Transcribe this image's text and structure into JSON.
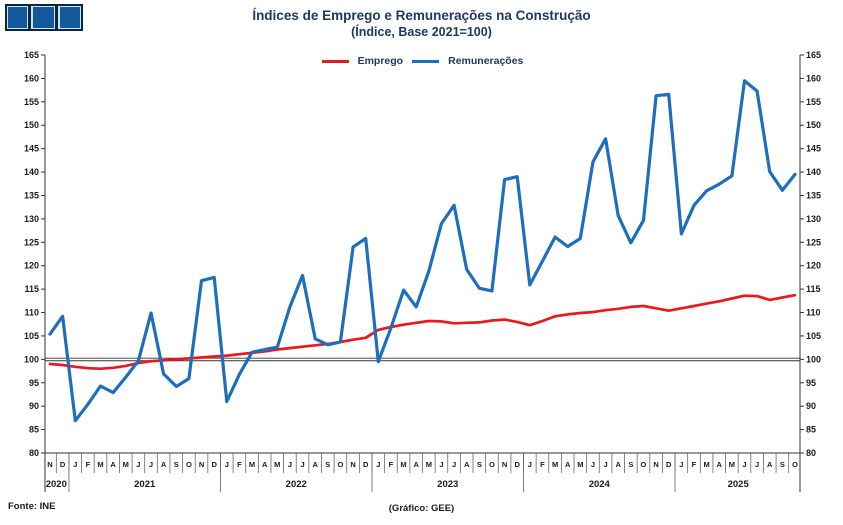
{
  "title": "Índices de Emprego e Remunerações na Construção",
  "subtitle": "(Índice, Base 2021=100)",
  "footer": {
    "source": "Fonte: INE",
    "credit": "(Gráfico: GEE)"
  },
  "colors": {
    "title": "#1f3864",
    "emprego": "#e8191d",
    "remuneracoes": "#1d6fbd",
    "axis_text": "#1a1a1a",
    "logo_blue": "#15599d"
  },
  "chart_data": {
    "type": "line",
    "title": "Índices de Emprego e Remunerações na Construção",
    "subtitle": "(Índice, Base 2021=100)",
    "legend_position": "top-center",
    "grid": false,
    "baseline": 100,
    "ylim": [
      80,
      165
    ],
    "ytick_step": 5,
    "y_axes": "identical left and right axes, ticks every 5 from 80 to 165",
    "x_tick_letters": [
      "N",
      "D",
      "J",
      "F",
      "M",
      "A",
      "M",
      "J",
      "J",
      "A",
      "S",
      "O",
      "N",
      "D",
      "J",
      "F",
      "M",
      "A",
      "M",
      "J",
      "J",
      "A",
      "S",
      "O",
      "N",
      "D",
      "J",
      "F",
      "M",
      "A",
      "M",
      "J",
      "J",
      "A",
      "S",
      "O",
      "N",
      "D",
      "J",
      "F",
      "M",
      "A",
      "M",
      "J",
      "J",
      "A",
      "S",
      "O",
      "N",
      "D",
      "J",
      "F",
      "M",
      "A",
      "M",
      "J",
      "J",
      "A",
      "S",
      "O"
    ],
    "year_groups": [
      {
        "label": "2020",
        "months": 2
      },
      {
        "label": "2021",
        "months": 12
      },
      {
        "label": "2022",
        "months": 12
      },
      {
        "label": "2023",
        "months": 12
      },
      {
        "label": "2024",
        "months": 12
      },
      {
        "label": "2025",
        "months": 10
      }
    ],
    "series": [
      {
        "name": "Emprego",
        "color": "#e8191d",
        "values": [
          99.0,
          98.8,
          98.4,
          98.1,
          98.0,
          98.2,
          98.6,
          99.2,
          99.6,
          99.8,
          100.0,
          100.2,
          100.4,
          100.6,
          100.8,
          101.1,
          101.4,
          101.7,
          102.1,
          102.4,
          102.7,
          103.0,
          103.3,
          103.7,
          104.2,
          104.6,
          106.3,
          106.9,
          107.4,
          107.8,
          108.2,
          108.1,
          107.7,
          107.8,
          107.9,
          108.3,
          108.5,
          108.0,
          107.3,
          108.2,
          109.2,
          109.6,
          109.9,
          110.1,
          110.5,
          110.8,
          111.2,
          111.4,
          110.9,
          110.4,
          110.9,
          111.4,
          111.9,
          112.4,
          113.0,
          113.6,
          113.5,
          112.7,
          113.2,
          113.7
        ]
      },
      {
        "name": "Remunerações",
        "color": "#1d6fbd",
        "values": [
          105.4,
          109.2,
          86.9,
          90.4,
          94.3,
          92.9,
          96.2,
          99.7,
          109.9,
          96.9,
          94.2,
          95.9,
          116.8,
          117.5,
          91.0,
          96.8,
          101.5,
          102.1,
          102.6,
          111.2,
          117.9,
          104.4,
          103.1,
          103.7,
          124.0,
          125.8,
          99.5,
          106.7,
          114.8,
          111.2,
          118.8,
          129.0,
          132.9,
          119.2,
          115.2,
          114.6,
          138.4,
          139.0,
          115.9,
          121.0,
          126.1,
          124.1,
          125.8,
          142.2,
          147.1,
          130.7,
          124.9,
          129.7,
          156.3,
          156.6,
          126.8,
          132.9,
          136.0,
          137.4,
          139.2,
          159.5,
          157.3,
          140.1,
          136.1,
          139.5
        ]
      }
    ]
  }
}
